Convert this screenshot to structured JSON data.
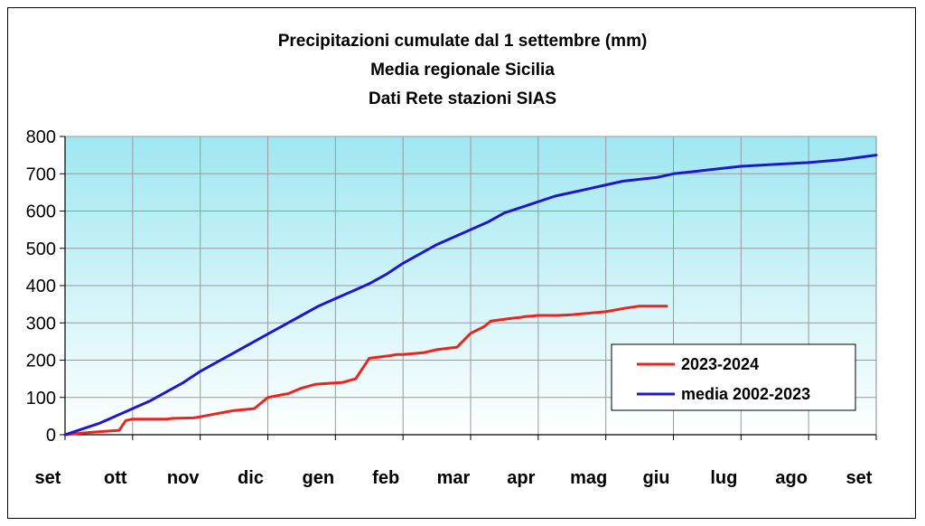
{
  "chart_data": {
    "type": "line",
    "title": "Precipitazioni cumulate dal 1 settembre (mm)",
    "subtitle": [
      "Media regionale Sicilia",
      "Dati Rete stazioni SIAS"
    ],
    "xlabel": "",
    "ylabel": "",
    "ylim": [
      0,
      800
    ],
    "yticks": [
      0,
      100,
      200,
      300,
      400,
      500,
      600,
      700,
      800
    ],
    "months": [
      "set",
      "ott",
      "nov",
      "dic",
      "gen",
      "feb",
      "mar",
      "apr",
      "mag",
      "giu",
      "lug",
      "ago",
      "set"
    ],
    "grid": true,
    "legend_position": "bottom-right",
    "x_unit": "months since 1 settembre",
    "series": [
      {
        "name": "2023-2024",
        "color": "#e8251f",
        "x": [
          0,
          0.3,
          0.5,
          0.65,
          0.8,
          0.9,
          1.0,
          1.5,
          1.6,
          1.9,
          2.0,
          2.2,
          2.5,
          2.8,
          3.0,
          3.2,
          3.3,
          3.5,
          3.7,
          3.9,
          4.1,
          4.3,
          4.5,
          4.8,
          4.9,
          5.0,
          5.3,
          5.5,
          5.8,
          6.0,
          6.2,
          6.3,
          6.6,
          6.75,
          6.8,
          6.9,
          7.0,
          7.3,
          7.5,
          8.0,
          8.3,
          8.5,
          8.7,
          8.9
        ],
        "values": [
          0,
          5,
          8,
          10,
          12,
          38,
          42,
          42,
          44,
          45,
          48,
          55,
          65,
          70,
          100,
          107,
          110,
          125,
          135,
          138,
          140,
          150,
          205,
          212,
          215,
          215,
          220,
          228,
          235,
          272,
          290,
          305,
          312,
          315,
          317,
          318,
          320,
          320,
          322,
          330,
          340,
          345,
          345,
          345
        ]
      },
      {
        "name": "media 2002-2023",
        "color": "#1f18c9",
        "x": [
          0,
          0.25,
          0.5,
          0.75,
          1.0,
          1.25,
          1.5,
          1.75,
          2.0,
          2.25,
          2.5,
          2.75,
          3.0,
          3.25,
          3.5,
          3.75,
          4.0,
          4.25,
          4.5,
          4.75,
          5.0,
          5.25,
          5.5,
          5.75,
          6.0,
          6.25,
          6.5,
          6.75,
          7.0,
          7.25,
          7.5,
          7.75,
          8.0,
          8.25,
          8.5,
          8.75,
          9.0,
          9.5,
          10.0,
          10.5,
          11.0,
          11.5,
          12.0
        ],
        "values": [
          0,
          15,
          30,
          50,
          70,
          90,
          115,
          140,
          170,
          195,
          220,
          245,
          270,
          295,
          320,
          345,
          365,
          385,
          405,
          430,
          460,
          485,
          510,
          530,
          550,
          570,
          595,
          610,
          625,
          640,
          650,
          660,
          670,
          680,
          685,
          690,
          700,
          710,
          720,
          725,
          730,
          738,
          750
        ]
      }
    ]
  }
}
